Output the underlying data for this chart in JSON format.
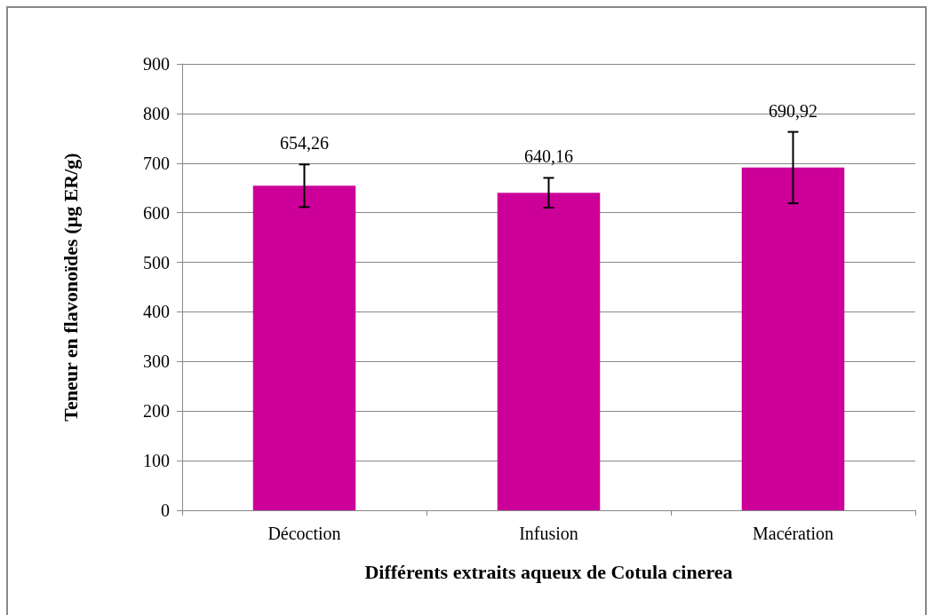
{
  "chart_data": {
    "type": "bar",
    "xlabel": "Différents extraits aqueux de Cotula cinerea",
    "ylabel": "Teneur en flavonoïdes (µg ER/g)",
    "categories": [
      "Décoction",
      "Infusion",
      "Macération"
    ],
    "values": [
      654.26,
      640.16,
      690.92
    ],
    "value_labels": [
      "654,26",
      "640,16",
      "690,92"
    ],
    "errors": [
      43,
      30,
      72
    ],
    "color": "#cc0099",
    "ylim": [
      0,
      900
    ],
    "yticks": [
      0,
      100,
      200,
      300,
      400,
      500,
      600,
      700,
      800,
      900
    ],
    "grid": "y"
  }
}
